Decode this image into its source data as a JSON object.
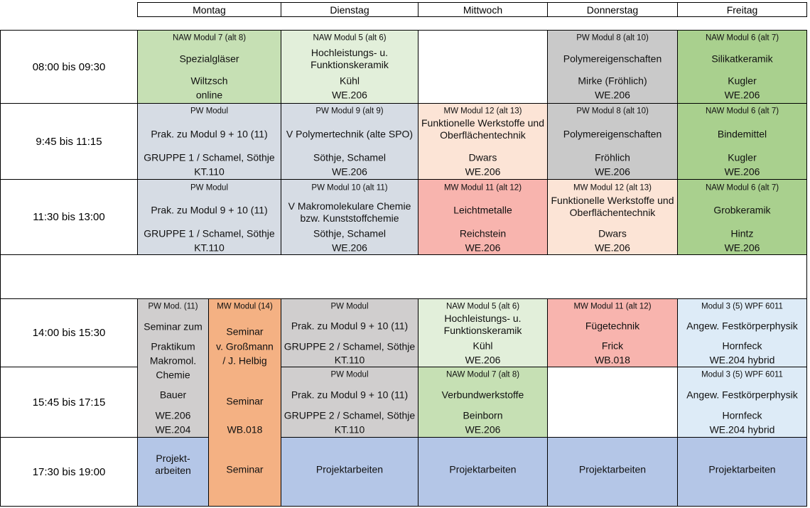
{
  "header": {
    "days": [
      "Montag",
      "Dienstag",
      "Mittwoch",
      "Donnerstag",
      "Freitag"
    ]
  },
  "times": [
    "08:00 bis 09:30",
    "9:45 bis 11:15",
    "11:30 bis 13:00",
    "14:00 bis 15:30",
    "15:45 bis 17:15",
    "17:30 bis 19:00"
  ],
  "cells": [
    {
      "lines": [
        "NAW Modul 7 (alt 8)",
        "Spezialgläser",
        "Wiltzsch",
        "online"
      ]
    },
    {
      "lines": [
        "NAW Modul 5 (alt 6)",
        "Hochleistungs- u. Funktionskeramik",
        "Kühl",
        "WE.206"
      ]
    },
    {
      "lines": [
        "PW Modul 8 (alt 10)",
        "Polymereigenschaften",
        "Mirke (Fröhlich)",
        "WE.206"
      ]
    },
    {
      "lines": [
        "NAW Modul 6 (alt 7)",
        "Silikatkeramik",
        "Kugler",
        "WE.206"
      ]
    },
    {
      "lines": [
        "PW Modul",
        "Prak. zu Modul 9 + 10 (11)",
        "GRUPPE 1 / Schamel, Söthje",
        "KT.110"
      ]
    },
    {
      "lines": [
        "PW Modul 9 (alt 9)",
        "V Polymertechnik (alte SPO)",
        "Söthje, Schamel",
        "WE.206"
      ]
    },
    {
      "lines": [
        "MW  Modul 12 (alt 13)",
        "Funktionelle Werkstoffe und Oberflächentechnik",
        "Dwars",
        "WE.206"
      ]
    },
    {
      "lines": [
        "PW Modul 8 (alt 10)",
        "Polymereigenschaften",
        "Fröhlich",
        "WE.206"
      ]
    },
    {
      "lines": [
        "NAW Modul 6 (alt 7)",
        "Bindemittel",
        "Kugler",
        "WE.206"
      ]
    },
    {
      "lines": [
        "PW Modul",
        "Prak. zu Modul 9 + 10 (11)",
        "GRUPPE 1 / Schamel, Söthje",
        "KT.110"
      ]
    },
    {
      "lines": [
        "PW Modul 10 (alt 11)",
        "V Makromolekulare Chemie bzw. Kunststoffchemie",
        "Söthje, Schamel",
        "WE.206"
      ]
    },
    {
      "lines": [
        "MW Modul 11 (alt 12)",
        "Leichtmetalle",
        "Reichstein",
        "WE.206"
      ]
    },
    {
      "lines": [
        "MW  Modul 12 (alt 13)",
        "Funktionelle Werkstoffe und Oberflächentechnik",
        "Dwars",
        "WE.206"
      ]
    },
    {
      "lines": [
        "NAW Modul 6 (alt 7)",
        "Grobkeramik",
        "Hintz",
        "WE.206"
      ]
    },
    {
      "lines": [
        "PW Mod. (11)",
        "Seminar zum",
        "Praktikum",
        "Makromol.",
        "Chemie",
        "Bauer",
        "WE.206",
        "WE.204"
      ]
    },
    {
      "lines": [
        "MW Modul (14)",
        "Seminar",
        "v. Großmann",
        "/ J. Helbig",
        "Seminar",
        "WB.018",
        "Seminar"
      ]
    },
    {
      "lines": [
        "PW Modul",
        "Prak. zu Modul 9 + 10 (11)",
        "GRUPPE 2 / Schamel, Söthje",
        "KT.110"
      ]
    },
    {
      "lines": [
        "NAW Modul 5 (alt 6)",
        "Hochleistungs- u. Funktionskeramik",
        "Kühl",
        "WE.206"
      ]
    },
    {
      "lines": [
        "MW Modul 11 (alt 12)",
        "Fügetechnik",
        "Frick",
        "WB.018"
      ]
    },
    {
      "lines": [
        "Modul 3 (5) WPF 6011",
        "Angew. Festkörperphysik",
        "Hornfeck",
        "WE.204 hybrid"
      ]
    },
    {
      "lines": [
        "PW Modul",
        "Prak. zu Modul 9 + 10 (11)",
        "GRUPPE 2 / Schamel, Söthje",
        "KT.110"
      ]
    },
    {
      "lines": [
        "NAW Modul 7 (alt 8)",
        "Verbundwerkstoffe",
        "Beinborn",
        "WE.206"
      ]
    },
    {
      "lines": [
        "Modul 3 (5) WPF 6011",
        "Angew. Festkörperphysik",
        "Hornfeck",
        "WE.204 hybrid"
      ]
    },
    {
      "lines": [
        "Projekt-arbeiten"
      ]
    },
    {
      "lines": [
        "Projektarbeiten"
      ]
    },
    {
      "lines": [
        "Projektarbeiten"
      ]
    },
    {
      "lines": [
        "Projektarbeiten"
      ]
    },
    {
      "lines": [
        "Projektarbeiten"
      ]
    }
  ]
}
